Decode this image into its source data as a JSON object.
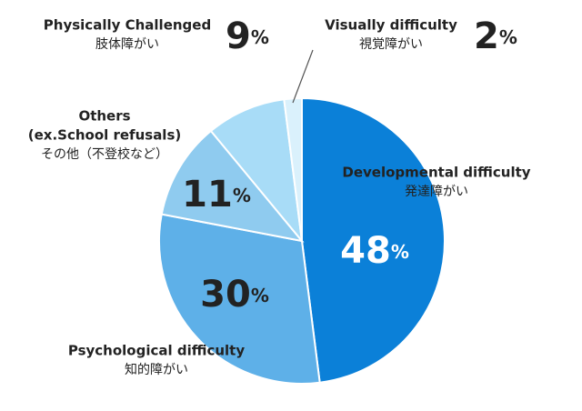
{
  "chart_data": {
    "type": "pie",
    "categories": [
      "Developmental difficulty",
      "Psychological difficulty",
      "Others",
      "Physically Challenged",
      "Visually difficulty"
    ],
    "sublabels": [
      [
        "発達障がい"
      ],
      [
        "知的障がい"
      ],
      [
        "(ex.School refusals)",
        "その他（不登校など）"
      ],
      [
        "肢体障がい"
      ],
      [
        "視覚障がい"
      ]
    ],
    "values": [
      48,
      30,
      11,
      9,
      2
    ],
    "value_labels": [
      "48%",
      "30%",
      "11%",
      "9%",
      "2%"
    ],
    "colors": [
      "#0b80d8",
      "#5eb0e8",
      "#8fcbef",
      "#a8dcf7",
      "#daf1fc"
    ]
  }
}
